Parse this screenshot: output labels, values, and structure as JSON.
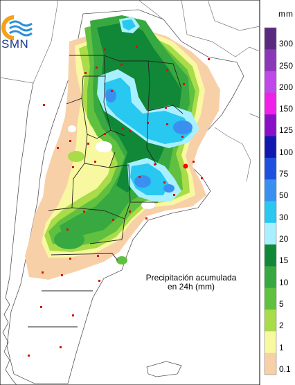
{
  "logo": {
    "text": "SMN"
  },
  "map": {
    "annotation_line1": "Precipitación acumulada",
    "annotation_line2": "en 24h (mm)"
  },
  "legend": {
    "unit": "mm",
    "classes": [
      {
        "label": "300",
        "color": "#5a2a80"
      },
      {
        "label": "250",
        "color": "#8a38b8"
      },
      {
        "label": "200",
        "color": "#c048e8"
      },
      {
        "label": "150",
        "color": "#f020e8"
      },
      {
        "label": "125",
        "color": "#8a10c8"
      },
      {
        "label": "100",
        "color": "#1018b0"
      },
      {
        "label": "75",
        "color": "#2050e0"
      },
      {
        "label": "50",
        "color": "#3a90f0"
      },
      {
        "label": "30",
        "color": "#28c8f0"
      },
      {
        "label": "20",
        "color": "#a8f0ff"
      },
      {
        "label": "15",
        "color": "#108838"
      },
      {
        "label": "10",
        "color": "#38a840"
      },
      {
        "label": "5",
        "color": "#60c040"
      },
      {
        "label": "2",
        "color": "#a8dc48"
      },
      {
        "label": "1",
        "color": "#f8f8a0"
      },
      {
        "label": "0.1",
        "color": "#f8d0a8"
      }
    ]
  }
}
